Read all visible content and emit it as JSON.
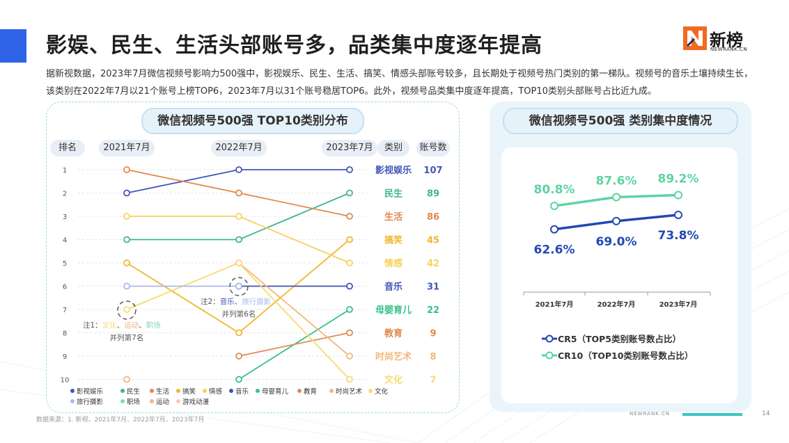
{
  "header": {
    "title": "影娱、民生、生活头部账号多，品类集中度逐年提高",
    "logo_cn": "新榜",
    "logo_en": "NEWRANK.CN",
    "description": "据新视数据，2023年7月微信视频号影响力500强中，影视娱乐、民生、生活、搞笑、情感头部账号较多，且长期处于视频号热门类别的第一梯队。视频号的音乐土壤持续生长，该类别在2022年7月以21个账号上榜TOP6，2023年7月以31个账号稳居TOP6。此外，视频号品类集中度逐年提高，TOP10类别头部账号占比近九成。"
  },
  "left_panel": {
    "title": "微信视频号500强  TOP10类别分布",
    "col_rank": "排名",
    "col_2021": "2021年7月",
    "col_2022": "2022年7月",
    "col_2023": "2023年7月",
    "col_category": "类别",
    "col_count": "账号数",
    "note1": {
      "prefix": "注1：",
      "items": [
        "文化",
        "运动",
        "职场"
      ],
      "sep": "、",
      "suffix": "并列第7名"
    },
    "note2": {
      "prefix": "注2：",
      "items": [
        "音乐",
        "旅行摄影"
      ],
      "sep": "、",
      "suffix": "并列第6名"
    }
  },
  "right_panel": {
    "title": "微信视频号500强  类别集中度情况"
  },
  "colors": {
    "影视娱乐": "#4157b8",
    "民生": "#3cb88d",
    "生活": "#e0894e",
    "搞笑": "#f0b72e",
    "情感": "#f5d35a",
    "音乐": "#3f54b8",
    "母婴育儿": "#37c189",
    "教育": "#e08a50",
    "时尚艺术": "#f1b87a",
    "文化": "#f8da72",
    "旅行摄影": "#aab8ec",
    "职场": "#80d8ae",
    "运动": "#f2b487",
    "游戏动漫": "#f7c9b4",
    "CR5": "#2348b4",
    "CR10": "#5ed3a2"
  },
  "chart_data": [
    {
      "type": "line",
      "title": "微信视频号500强  TOP10类别分布",
      "x": [
        "2021年7月",
        "2022年7月",
        "2023年7月"
      ],
      "ylabel": "排名",
      "y_ticks": [
        "1",
        "2",
        "3",
        "4",
        "5",
        "6",
        "7",
        "8",
        "9",
        "10"
      ],
      "ylim": [
        1,
        10
      ],
      "y_inverted": true,
      "series": [
        {
          "name": "影视娱乐",
          "values": [
            2,
            1,
            1
          ],
          "count_2023": 107
        },
        {
          "name": "民生",
          "values": [
            4,
            4,
            2
          ],
          "count_2023": 89
        },
        {
          "name": "生活",
          "values": [
            1,
            2,
            3
          ],
          "count_2023": 86
        },
        {
          "name": "搞笑",
          "values": [
            5,
            8,
            4
          ],
          "count_2023": 45
        },
        {
          "name": "情感",
          "values": [
            3,
            3,
            5
          ],
          "count_2023": 42
        },
        {
          "name": "音乐",
          "values": [
            null,
            6,
            6
          ],
          "count_2023": 31
        },
        {
          "name": "母婴育儿",
          "values": [
            null,
            10,
            7
          ],
          "count_2023": 22
        },
        {
          "name": "教育",
          "values": [
            null,
            9,
            8
          ],
          "count_2023": 9
        },
        {
          "name": "时尚艺术",
          "values": [
            null,
            5,
            9
          ],
          "count_2023": 8
        },
        {
          "name": "文化",
          "values": [
            7,
            5,
            10
          ],
          "count_2023": 7
        },
        {
          "name": "旅行摄影",
          "values": [
            6,
            6,
            null
          ]
        },
        {
          "name": "职场",
          "values": [
            null,
            null,
            null
          ]
        },
        {
          "name": "运动",
          "values": [
            10,
            null,
            null
          ]
        },
        {
          "name": "游戏动漫",
          "values": [
            null,
            null,
            null
          ]
        }
      ],
      "legend": [
        "影视娱乐",
        "民生",
        "生活",
        "搞笑",
        "情感",
        "音乐",
        "母婴育儿",
        "教育",
        "时尚艺术",
        "文化",
        "旅行摄影",
        "职场",
        "运动",
        "游戏动漫"
      ],
      "legend_position": "bottom"
    },
    {
      "type": "line",
      "title": "微信视频号500强  类别集中度情况",
      "x": [
        "2021年7月",
        "2022年7月",
        "2023年7月"
      ],
      "series": [
        {
          "name": "CR5（TOP5类别账号数占比）",
          "key": "CR5",
          "values": [
            62.6,
            69.0,
            73.8
          ],
          "labels": [
            "62.6%",
            "69.0%",
            "73.8%"
          ]
        },
        {
          "name": "CR10（TOP10类别账号数占比）",
          "key": "CR10",
          "values": [
            80.8,
            87.6,
            89.2
          ],
          "labels": [
            "80.8%",
            "87.6%",
            "89.2%"
          ]
        }
      ],
      "legend_position": "bottom"
    }
  ],
  "footer": {
    "source": "数据来源：1. 新视，2021年7月、2022年7月、2023年7月",
    "brand": "NEWRANK.CN",
    "page": "14"
  }
}
